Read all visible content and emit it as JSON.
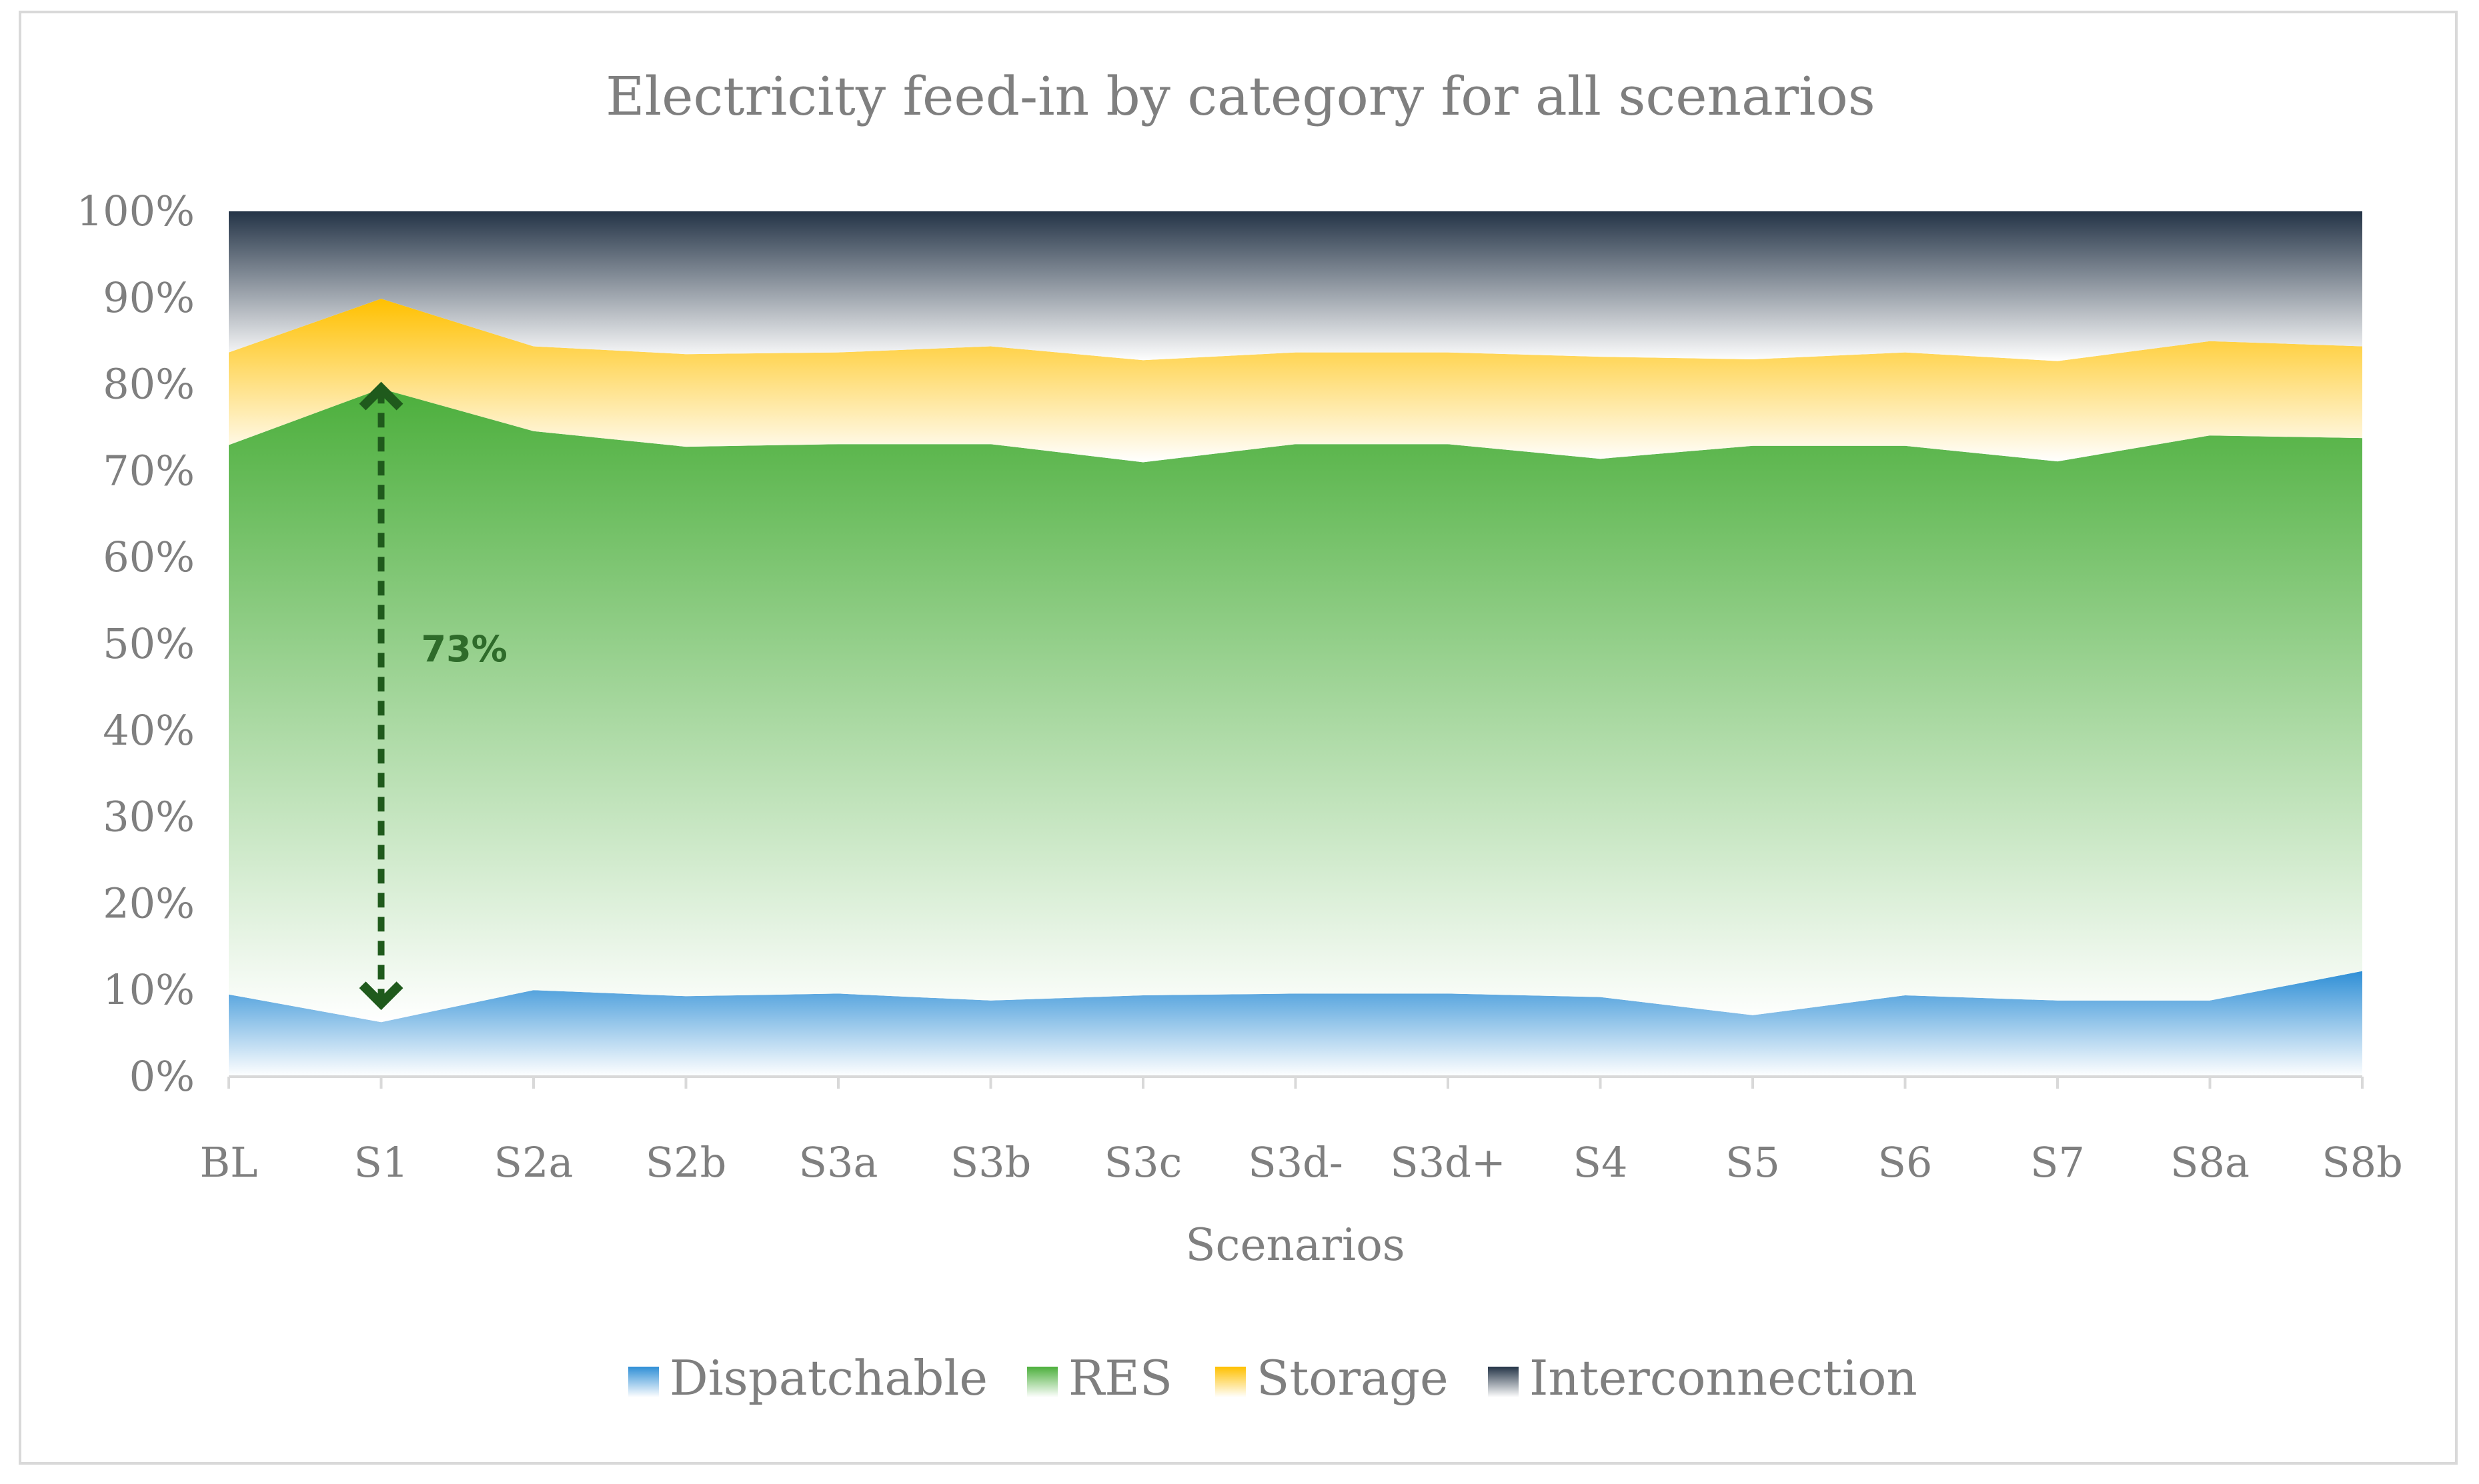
{
  "chart_data": {
    "type": "area",
    "stacked": "percent",
    "title": "Electricity feed-in by category for all scenarios",
    "xlabel": "Scenarios",
    "ylabel": "",
    "ylim": [
      0,
      100
    ],
    "yticks": [
      "0%",
      "10%",
      "20%",
      "30%",
      "40%",
      "50%",
      "60%",
      "70%",
      "80%",
      "90%",
      "100%"
    ],
    "categories": [
      "BL",
      "S1",
      "S2a",
      "S2b",
      "S3a",
      "S3b",
      "S3c",
      "S3d-",
      "S3d+",
      "S4",
      "S5",
      "S6",
      "S7",
      "S8a",
      "S8b"
    ],
    "series": [
      {
        "name": "Dispatchable",
        "color": "#2f8fd6",
        "values": [
          9.5,
          6.3,
          10.0,
          9.3,
          9.6,
          8.8,
          9.4,
          9.6,
          9.6,
          9.2,
          7.1,
          9.4,
          8.8,
          8.8,
          12.2
        ]
      },
      {
        "name": "RES",
        "color": "#4caf3c",
        "values": [
          63.5,
          73.2,
          64.6,
          63.5,
          63.5,
          64.3,
          61.6,
          63.5,
          63.5,
          62.2,
          65.8,
          63.5,
          62.3,
          65.3,
          61.6
        ]
      },
      {
        "name": "Storage",
        "color": "#ffc000",
        "values": [
          10.7,
          10.4,
          9.8,
          10.7,
          10.6,
          11.3,
          11.8,
          10.6,
          10.6,
          11.8,
          10.0,
          10.8,
          11.6,
          10.9,
          10.6
        ]
      },
      {
        "name": "Interconnection",
        "color": "#243447",
        "values": [
          16.3,
          10.1,
          15.6,
          16.5,
          16.3,
          15.6,
          17.2,
          16.3,
          16.3,
          16.8,
          17.1,
          16.3,
          17.3,
          15.0,
          15.6
        ]
      }
    ],
    "legend_position": "bottom",
    "annotation": {
      "label": "73%",
      "category": "S1",
      "from": 10,
      "to": 78
    }
  }
}
